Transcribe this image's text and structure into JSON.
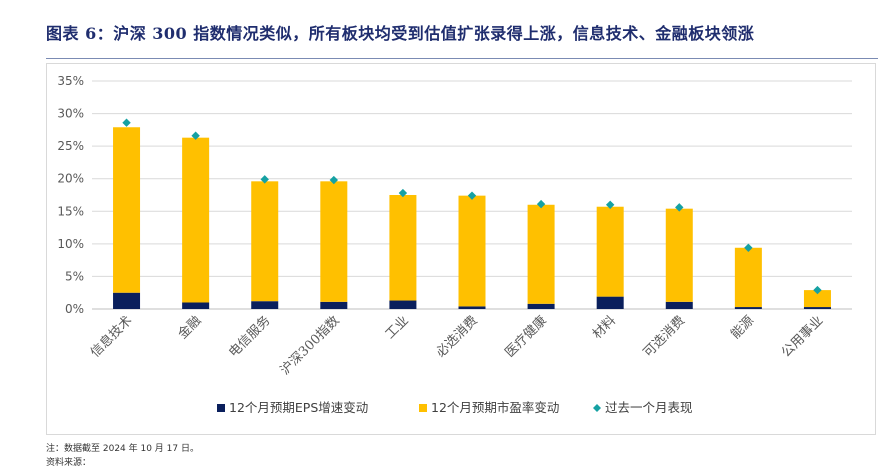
{
  "title": "图表 6：沪深 300 指数情况类似，所有板块均受到估值扩张录得上涨，信息技术、金融板块领涨",
  "note": "注：数据截至 2024 年 10 月 17 日。",
  "note_2": "资料来源：",
  "colors": {
    "title": "#1f2d6e",
    "eps": "#0a1f5c",
    "pe": "#ffc000",
    "perf": "#15a1a3",
    "grid": "#d9d9d9",
    "axis_text": "#595959"
  },
  "chart_data": {
    "type": "bar",
    "stacked": true,
    "categories": [
      "信息技术",
      "金融",
      "电信服务",
      "沪深300指数",
      "工业",
      "必选消费",
      "医疗健康",
      "材料",
      "可选消费",
      "能源",
      "公用事业"
    ],
    "series": [
      {
        "name": "12个月预期EPS增速变动",
        "type": "bar",
        "color": "#0a1f5c",
        "values": [
          2.5,
          1.0,
          1.2,
          1.1,
          1.3,
          0.4,
          0.8,
          1.9,
          1.1,
          0.3,
          0.3
        ]
      },
      {
        "name": "12个月预期市盈率变动",
        "type": "bar",
        "color": "#ffc000",
        "values": [
          25.4,
          25.3,
          18.4,
          18.5,
          16.2,
          17.0,
          15.2,
          13.8,
          14.3,
          9.1,
          2.6
        ]
      },
      {
        "name": "过去一个月表现",
        "type": "scatter",
        "color": "#15a1a3",
        "values": [
          28.6,
          26.6,
          19.9,
          19.8,
          17.8,
          17.4,
          16.1,
          16.0,
          15.6,
          9.4,
          2.9
        ]
      }
    ],
    "ylim": [
      0,
      35
    ],
    "yticks": [
      "0%",
      "5%",
      "10%",
      "15%",
      "20%",
      "25%",
      "30%",
      "35%"
    ],
    "grid": true,
    "legend_position": "bottom"
  }
}
